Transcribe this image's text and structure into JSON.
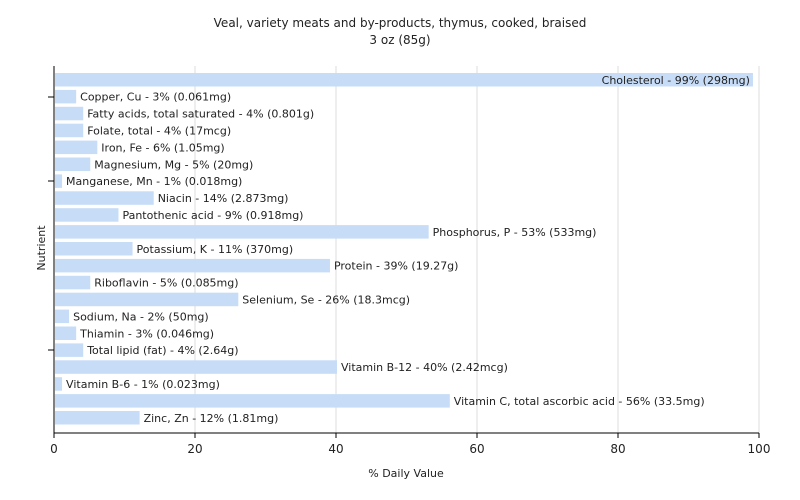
{
  "chart_data": {
    "type": "bar",
    "orientation": "horizontal",
    "title": "Veal, variety meats and by-products, thymus, cooked, braised",
    "subtitle": "3 oz (85g)",
    "xlabel": "% Daily Value",
    "ylabel": "Nutrient",
    "xlim": [
      0,
      100
    ],
    "xticks": [
      0,
      20,
      40,
      60,
      80,
      100
    ],
    "grid": true,
    "colors": {
      "bar": "#c6dcf7",
      "grid": "#dddddd",
      "axis": "#000000",
      "text": "#222222"
    },
    "categories": [
      "Cholesterol",
      "Copper, Cu",
      "Fatty acids, total saturated",
      "Folate, total",
      "Iron, Fe",
      "Magnesium, Mg",
      "Manganese, Mn",
      "Niacin",
      "Pantothenic acid",
      "Phosphorus, P",
      "Potassium, K",
      "Protein",
      "Riboflavin",
      "Selenium, Se",
      "Sodium, Na",
      "Thiamin",
      "Total lipid (fat)",
      "Vitamin B-12",
      "Vitamin B-6",
      "Vitamin C, total ascorbic acid",
      "Zinc, Zn"
    ],
    "values": [
      99,
      3,
      4,
      4,
      6,
      5,
      1,
      14,
      9,
      53,
      11,
      39,
      5,
      26,
      2,
      3,
      4,
      40,
      1,
      56,
      12
    ],
    "labels": [
      "Cholesterol - 99% (298mg)",
      "Copper, Cu - 3% (0.061mg)",
      "Fatty acids, total saturated - 4% (0.801g)",
      "Folate, total - 4% (17mcg)",
      "Iron, Fe - 6% (1.05mg)",
      "Magnesium, Mg - 5% (20mg)",
      "Manganese, Mn - 1% (0.018mg)",
      "Niacin - 14% (2.873mg)",
      "Pantothenic acid - 9% (0.918mg)",
      "Phosphorus, P - 53% (533mg)",
      "Potassium, K - 11% (370mg)",
      "Protein - 39% (19.27g)",
      "Riboflavin - 5% (0.085mg)",
      "Selenium, Se - 26% (18.3mcg)",
      "Sodium, Na - 2% (50mg)",
      "Thiamin - 3% (0.046mg)",
      "Total lipid (fat) - 4% (2.64g)",
      "Vitamin B-12 - 40% (2.42mcg)",
      "Vitamin B-6 - 1% (0.023mg)",
      "Vitamin C, total ascorbic acid - 56% (33.5mg)",
      "Zinc, Zn - 12% (1.81mg)"
    ]
  }
}
